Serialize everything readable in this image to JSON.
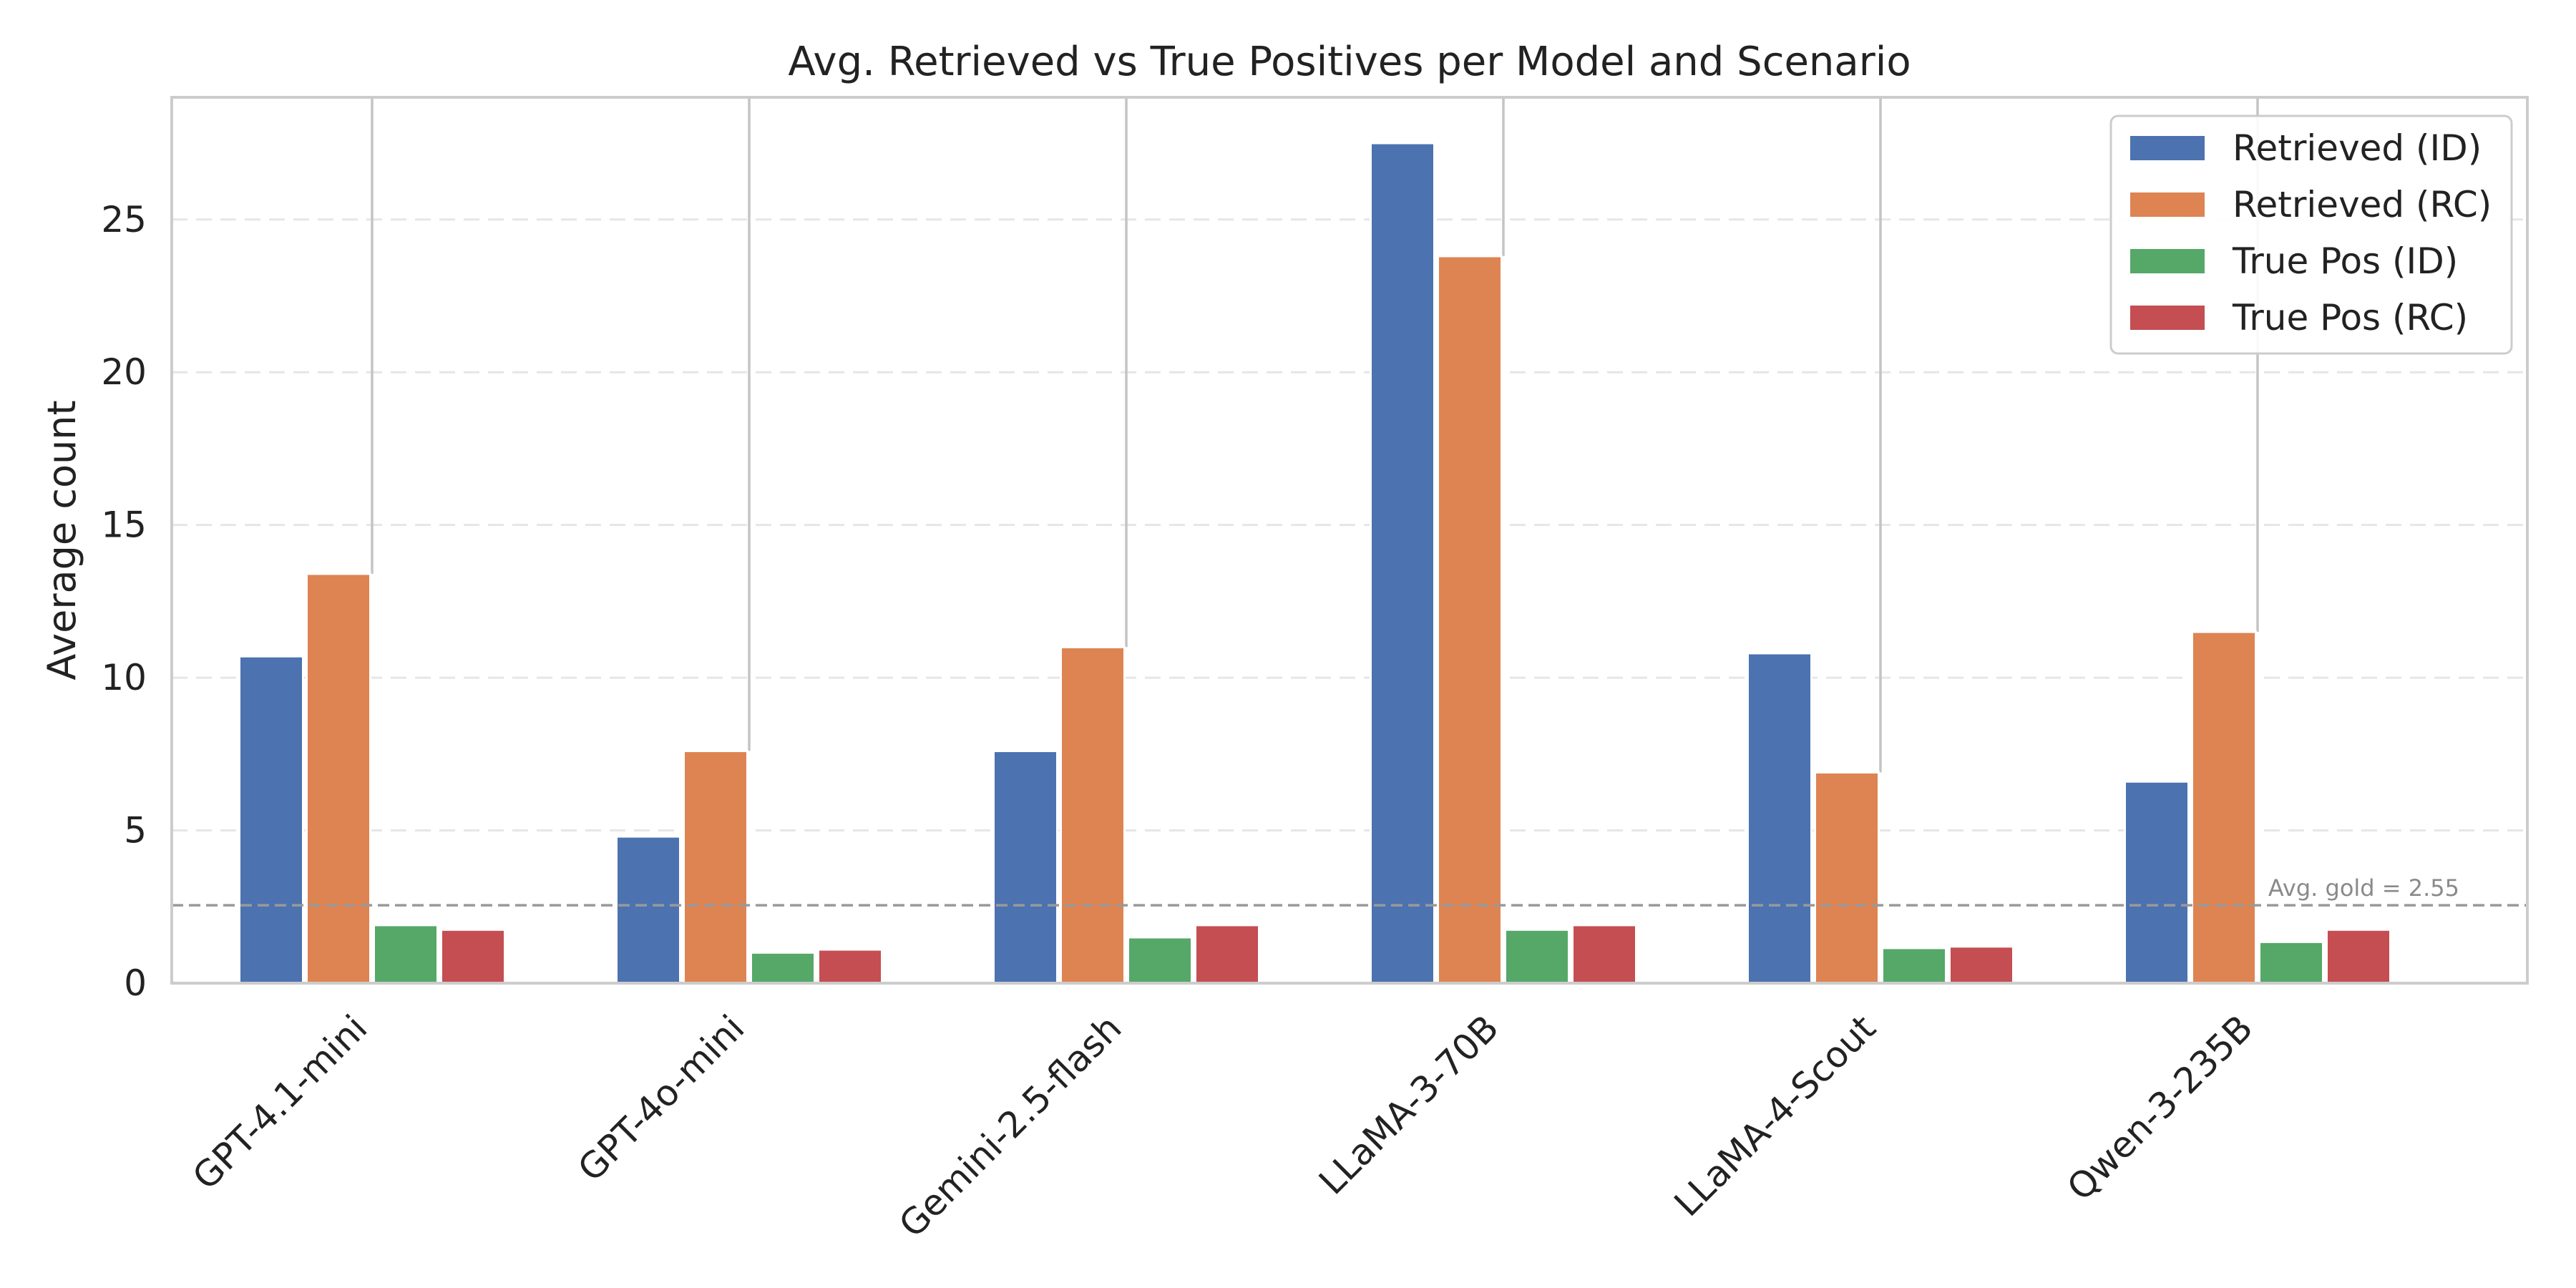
{
  "chart_data": {
    "type": "bar",
    "title": "Avg. Retrieved vs True Positives per Model and Scenario",
    "xlabel": "",
    "ylabel": "Average count",
    "ylim": [
      0,
      29
    ],
    "yticks": [
      0,
      5,
      10,
      15,
      20,
      25
    ],
    "grid": "y-dashed",
    "legend_position": "top-right",
    "categories": [
      "GPT-4.1-mini",
      "GPT-4o-mini",
      "Gemini-2.5-flash",
      "LLaMA-3-70B",
      "LLaMA-4-Scout",
      "Qwen-3-235B"
    ],
    "series": [
      {
        "name": "Retrieved (ID)",
        "color": "#4c72b0",
        "values": [
          10.7,
          4.8,
          7.6,
          27.5,
          10.8,
          6.6
        ]
      },
      {
        "name": "Retrieved (RC)",
        "color": "#dd8452",
        "values": [
          13.4,
          7.6,
          11.0,
          23.8,
          6.9,
          11.5
        ]
      },
      {
        "name": "True Pos (ID)",
        "color": "#55a868",
        "values": [
          1.9,
          1.0,
          1.5,
          1.75,
          1.15,
          1.35
        ]
      },
      {
        "name": "True Pos (RC)",
        "color": "#c44e52",
        "values": [
          1.75,
          1.1,
          1.9,
          1.9,
          1.2,
          1.75
        ]
      }
    ],
    "reference_line": {
      "value": 2.55,
      "label": "Avg. gold = 2.55",
      "color": "#999999"
    },
    "connector_color": "#c4c4c4"
  }
}
